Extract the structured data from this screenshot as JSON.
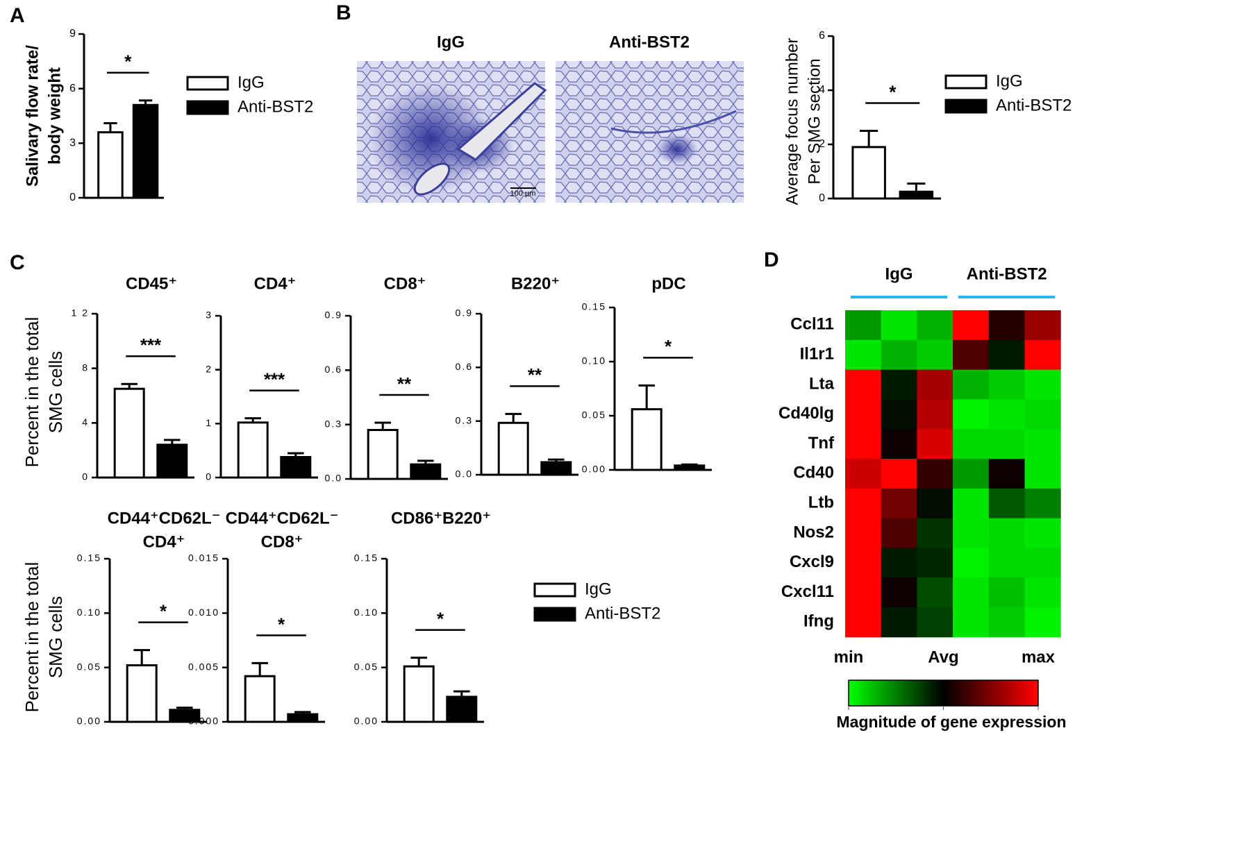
{
  "panel_labels": [
    "A",
    "B",
    "C",
    "D"
  ],
  "groups": [
    {
      "name": "IgG",
      "color": "#ffffff"
    },
    {
      "name": "Anti-BST2",
      "color": "#000000"
    }
  ],
  "micrographs": {
    "titles": [
      "IgG",
      "Anti-BST2"
    ],
    "scale_bar": "100 µm"
  },
  "percent_ylabel": [
    "Percent in the total",
    "SMG cells"
  ],
  "chart_data": [
    {
      "type": "bar",
      "ylabel": [
        "Salivary flow rate/",
        "body weight"
      ],
      "values": [
        3.6,
        5.1
      ],
      "errors": [
        0.5,
        0.25
      ],
      "ylim": [
        0,
        9
      ],
      "yticks": [
        0,
        3,
        6,
        9
      ],
      "significance": "*",
      "legend": true
    },
    {
      "type": "bar",
      "ylabel": [
        "Average focus number",
        "Per SMG section"
      ],
      "values": [
        1.9,
        0.25
      ],
      "errors": [
        0.6,
        0.3
      ],
      "ylim": [
        0,
        6
      ],
      "yticks": [
        0,
        2,
        4,
        6
      ],
      "significance": "*",
      "legend": true
    },
    {
      "type": "bar",
      "title": [
        "CD45⁺"
      ],
      "values": [
        6.5,
        2.4
      ],
      "errors": [
        0.35,
        0.35
      ],
      "ylim": [
        0,
        12
      ],
      "yticks": [
        0,
        4,
        8,
        {
          "value": 12,
          "label": "1 2"
        }
      ],
      "significance": "***"
    },
    {
      "type": "bar",
      "title": [
        "CD4⁺"
      ],
      "values": [
        1.02,
        0.38
      ],
      "errors": [
        0.08,
        0.07
      ],
      "ylim": [
        0,
        3
      ],
      "yticks": [
        0,
        1,
        2,
        3
      ],
      "significance": "***"
    },
    {
      "type": "bar",
      "title": [
        "CD8⁺"
      ],
      "values": [
        0.27,
        0.08
      ],
      "errors": [
        0.04,
        0.02
      ],
      "ylim": [
        0,
        0.9
      ],
      "yticks": [
        {
          "value": 0,
          "label": "0.0"
        },
        0.3,
        0.6,
        0.9
      ],
      "significance": "**"
    },
    {
      "type": "bar",
      "title": [
        "B220⁺"
      ],
      "values": [
        0.29,
        0.07
      ],
      "errors": [
        0.05,
        0.015
      ],
      "ylim": [
        0,
        0.9
      ],
      "yticks": [
        {
          "value": 0,
          "label": "0.0"
        },
        0.3,
        0.6,
        0.9
      ],
      "significance": "**"
    },
    {
      "type": "bar",
      "title": [
        "pDC"
      ],
      "values": [
        0.056,
        0.004
      ],
      "errors": [
        0.022,
        0.001
      ],
      "ylim": [
        0,
        0.15
      ],
      "yticks": [
        {
          "value": 0,
          "label": "0.00"
        },
        0.05,
        {
          "value": 0.1,
          "label": "0.10"
        },
        0.15
      ],
      "significance": "*"
    },
    {
      "type": "bar",
      "title": [
        "CD44⁺CD62L⁻",
        "CD4⁺"
      ],
      "values": [
        0.052,
        0.011
      ],
      "errors": [
        0.014,
        0.002
      ],
      "ylim": [
        0,
        0.15
      ],
      "yticks": [
        {
          "value": 0,
          "label": "0.00"
        },
        0.05,
        {
          "value": 0.1,
          "label": "0.10"
        },
        0.15
      ],
      "significance": "*"
    },
    {
      "type": "bar",
      "title": [
        "CD44⁺CD62L⁻",
        "CD8⁺"
      ],
      "values": [
        0.0042,
        0.0007
      ],
      "errors": [
        0.0012,
        0.0002
      ],
      "ylim": [
        0,
        0.015
      ],
      "yticks": [
        {
          "value": 0,
          "label": "0.000"
        },
        0.005,
        {
          "value": 0.01,
          "label": "0.010"
        },
        0.015
      ],
      "significance": "*"
    },
    {
      "type": "bar",
      "title": [
        "CD86⁺B220⁺"
      ],
      "values": [
        0.051,
        0.023
      ],
      "errors": [
        0.008,
        0.005
      ],
      "ylim": [
        0,
        0.15
      ],
      "yticks": [
        {
          "value": 0,
          "label": "0.00"
        },
        0.05,
        {
          "value": 0.1,
          "label": "0.10"
        },
        0.15
      ],
      "significance": "*",
      "legend": true
    },
    {
      "type": "heatmap",
      "column_groups": [
        "IgG",
        "Anti-BST2"
      ],
      "rows": [
        "Ccl11",
        "Il1r1",
        "Lta",
        "Cd40lg",
        "Tnf",
        "Cd40",
        "Ltb",
        "Nos2",
        "Cxcl9",
        "Cxcl11",
        "Ifng"
      ],
      "values": [
        [
          -0.6,
          -0.9,
          -0.7,
          1,
          0.15,
          0.6
        ],
        [
          -0.9,
          -0.7,
          -0.8,
          0.3,
          -0.1,
          1
        ],
        [
          1,
          -0.1,
          0.65,
          -0.7,
          -0.8,
          -0.9
        ],
        [
          1,
          -0.05,
          0.7,
          -0.95,
          -0.9,
          -0.85
        ],
        [
          1,
          0.05,
          0.85,
          -0.85,
          -0.85,
          -0.9
        ],
        [
          0.8,
          1,
          0.2,
          -0.6,
          0.05,
          -0.9
        ],
        [
          1,
          0.45,
          -0.05,
          -0.9,
          -0.35,
          -0.5
        ],
        [
          1,
          0.3,
          -0.2,
          -0.9,
          -0.85,
          -0.9
        ],
        [
          1,
          -0.1,
          -0.15,
          -0.95,
          -0.85,
          -0.85
        ],
        [
          1,
          0.05,
          -0.3,
          -0.9,
          -0.75,
          -0.9
        ],
        [
          1,
          -0.1,
          -0.25,
          -0.9,
          -0.8,
          -0.95
        ]
      ],
      "zlim": [
        -1,
        1
      ],
      "colors": [
        "#00ff00",
        "#000000",
        "#ff0000"
      ],
      "scale_labels": [
        "min",
        "Avg",
        "max"
      ],
      "colorbar_title": "Magnitude of gene expression"
    }
  ]
}
